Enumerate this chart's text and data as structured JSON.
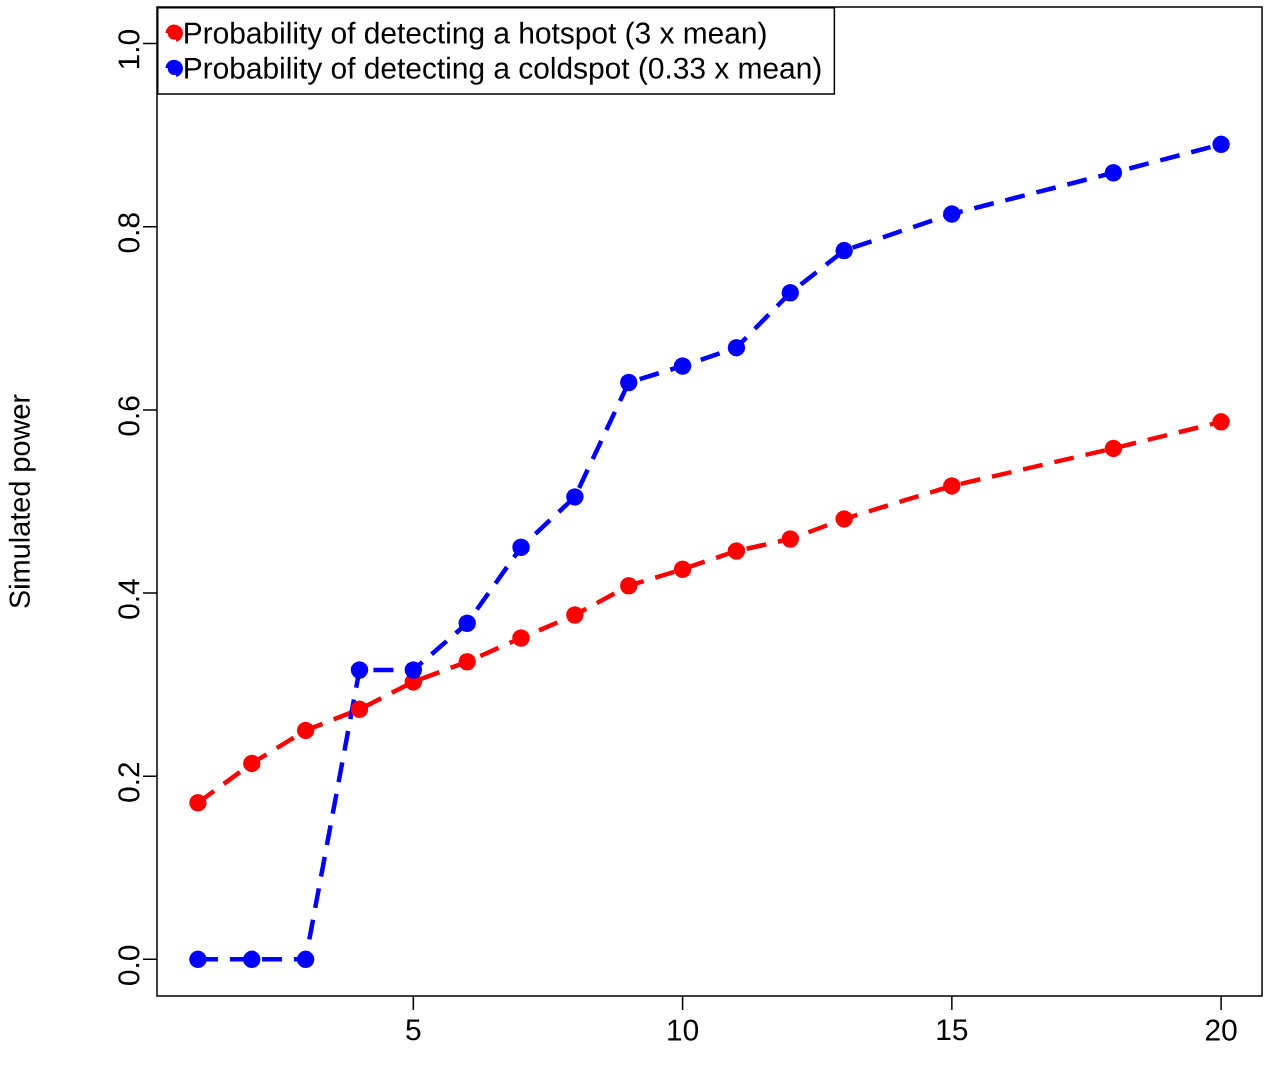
{
  "chart_data": {
    "type": "line",
    "ylabel": "Simulated power",
    "x": [
      1,
      2,
      3,
      4,
      5,
      6,
      7,
      8,
      9,
      10,
      11,
      12,
      13,
      15,
      18,
      20
    ],
    "series": [
      {
        "name": "Probability of detecting a hotspot (3 x mean)",
        "color": "#ff0000",
        "values": [
          0.171,
          0.214,
          0.25,
          0.273,
          0.303,
          0.325,
          0.351,
          0.376,
          0.408,
          0.426,
          0.446,
          0.459,
          0.481,
          0.517,
          0.558,
          0.587
        ]
      },
      {
        "name": "Probability of detecting a coldspot (0.33 x mean)",
        "color": "#0000ff",
        "values": [
          0,
          0,
          0,
          0.316,
          0.316,
          0.367,
          0.45,
          0.505,
          0.63,
          0.648,
          0.668,
          0.728,
          0.774,
          0.814,
          0.859,
          0.89
        ]
      }
    ],
    "xlim": [
      0.24,
      20.76
    ],
    "ylim": [
      -0.04,
      1.04
    ],
    "xticks": [
      5,
      10,
      15,
      20
    ],
    "yticks": [
      {
        "value": 0,
        "label": "0.0"
      },
      0.2,
      0.4,
      0.6,
      0.8,
      {
        "value": 1,
        "label": "1.0"
      }
    ],
    "legend": "top left",
    "marker": "circle",
    "line_style": "dashed",
    "grid": false
  }
}
